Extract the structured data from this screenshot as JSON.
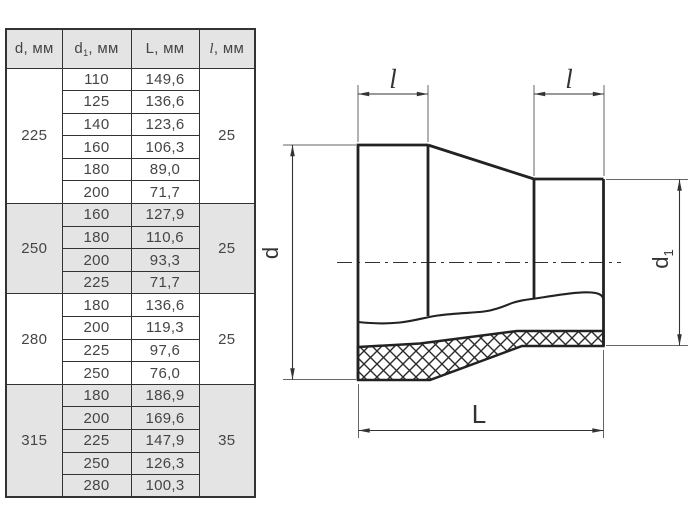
{
  "table": {
    "headers": [
      {
        "main": "d",
        "sub": "",
        "unit": ", мм"
      },
      {
        "main": "d",
        "sub": "1",
        "unit": ", мм"
      },
      {
        "main": "L",
        "sub": "",
        "unit": ", мм"
      },
      {
        "main": "l",
        "sub": "",
        "unit": ", мм"
      }
    ],
    "groups": [
      {
        "d": "225",
        "l": "25",
        "shaded": false,
        "rows": [
          [
            "110",
            "149,6"
          ],
          [
            "125",
            "136,6"
          ],
          [
            "140",
            "123,6"
          ],
          [
            "160",
            "106,3"
          ],
          [
            "180",
            "89,0"
          ],
          [
            "200",
            "71,7"
          ]
        ]
      },
      {
        "d": "250",
        "l": "25",
        "shaded": true,
        "rows": [
          [
            "160",
            "127,9"
          ],
          [
            "180",
            "110,6"
          ],
          [
            "200",
            "93,3"
          ],
          [
            "225",
            "71,7"
          ]
        ]
      },
      {
        "d": "280",
        "l": "25",
        "shaded": false,
        "rows": [
          [
            "180",
            "136,6"
          ],
          [
            "200",
            "119,3"
          ],
          [
            "225",
            "97,6"
          ],
          [
            "250",
            "76,0"
          ]
        ]
      },
      {
        "d": "315",
        "l": "35",
        "shaded": true,
        "rows": [
          [
            "180",
            "186,9"
          ],
          [
            "200",
            "169,6"
          ],
          [
            "225",
            "147,9"
          ],
          [
            "250",
            "126,3"
          ],
          [
            "280",
            "100,3"
          ]
        ]
      }
    ]
  },
  "diagram": {
    "labels": {
      "l_left": "l",
      "l_right": "l",
      "d": "d",
      "d1_main": "d",
      "d1_sub": "1",
      "L": "L"
    }
  },
  "colors": {
    "shaded_cell": "#e4e4e4",
    "line": "#333333",
    "text": "#454545"
  }
}
